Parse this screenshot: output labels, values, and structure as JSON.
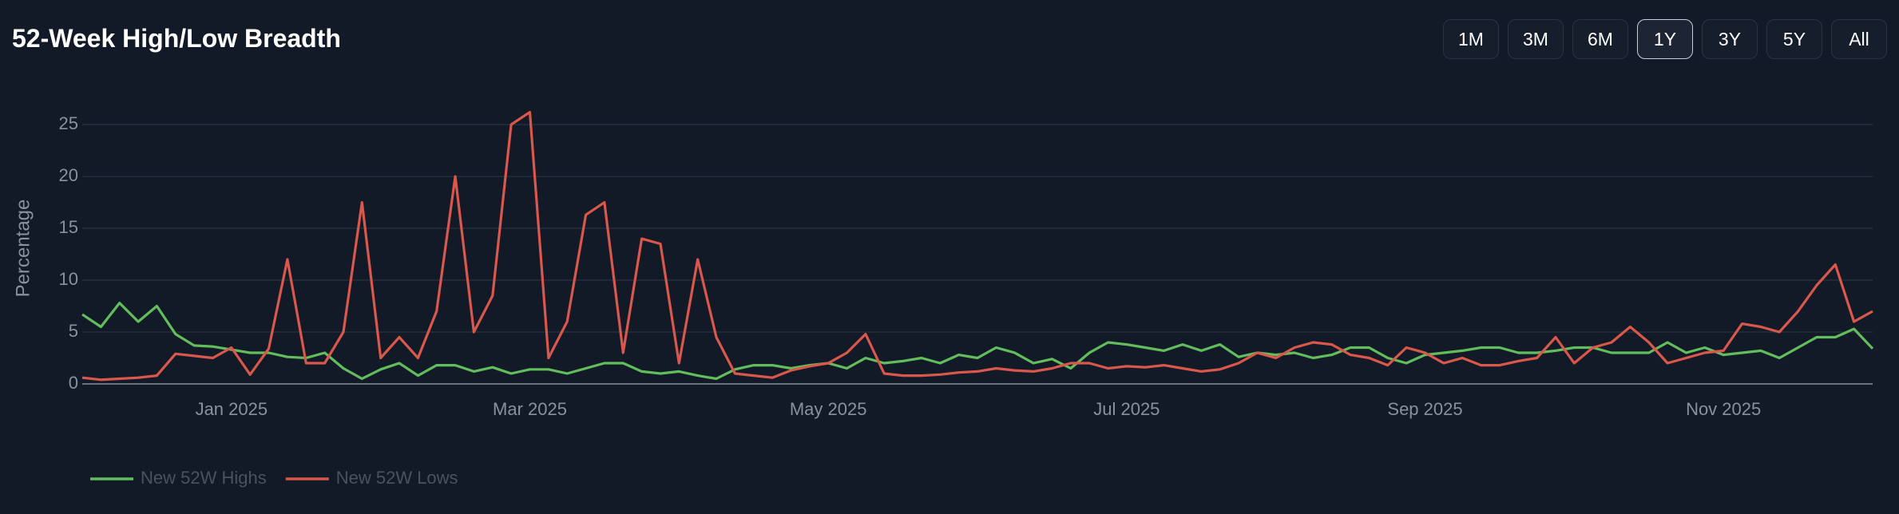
{
  "header": {
    "title": "52-Week High/Low Breadth"
  },
  "buttons": {
    "labels": [
      "1M",
      "3M",
      "6M",
      "1Y",
      "3Y",
      "5Y",
      "All"
    ],
    "active": 3
  },
  "chart_data": {
    "type": "line",
    "y_label": "Percentage",
    "legend": "bottom-left",
    "grid": true,
    "categories": [
      null,
      null,
      null,
      null,
      null,
      null,
      null,
      null,
      "Jan 2025",
      null,
      null,
      null,
      null,
      null,
      null,
      null,
      null,
      null,
      null,
      null,
      null,
      null,
      null,
      null,
      "Mar 2025",
      null,
      null,
      null,
      null,
      null,
      null,
      null,
      null,
      null,
      null,
      null,
      null,
      null,
      null,
      null,
      "May 2025",
      null,
      null,
      null,
      null,
      null,
      null,
      null,
      null,
      null,
      null,
      null,
      null,
      null,
      null,
      null,
      "Jul 2025",
      null,
      null,
      null,
      null,
      null,
      null,
      null,
      null,
      null,
      null,
      null,
      null,
      null,
      null,
      null,
      "Sep 2025",
      null,
      null,
      null,
      null,
      null,
      null,
      null,
      null,
      null,
      null,
      null,
      null,
      null,
      null,
      null,
      "Nov 2025",
      null,
      null,
      null,
      null,
      null,
      null,
      null,
      null
    ],
    "ylim": [
      0,
      27.7
    ],
    "yticks": [
      0,
      5,
      10,
      15,
      20,
      25
    ],
    "series": [
      {
        "name": "New 52W Highs",
        "color": "#62bd5c",
        "values": [
          6.7,
          5.5,
          7.8,
          6.0,
          7.5,
          4.8,
          3.7,
          3.6,
          3.3,
          3.0,
          3.0,
          2.6,
          2.5,
          3.0,
          1.5,
          0.5,
          1.4,
          2.0,
          0.8,
          1.8,
          1.8,
          1.2,
          1.6,
          1.0,
          1.4,
          1.4,
          1.0,
          1.5,
          2.0,
          2.0,
          1.2,
          1.0,
          1.2,
          0.8,
          0.5,
          1.4,
          1.8,
          1.8,
          1.5,
          1.8,
          2.0,
          1.5,
          2.5,
          2.0,
          2.2,
          2.5,
          2.0,
          2.8,
          2.5,
          3.5,
          3.0,
          2.0,
          2.4,
          1.5,
          3.0,
          4.0,
          3.8,
          3.5,
          3.2,
          3.8,
          3.2,
          3.8,
          2.6,
          3.0,
          2.8,
          3.0,
          2.5,
          2.8,
          3.5,
          3.5,
          2.5,
          2.0,
          2.8,
          3.0,
          3.2,
          3.5,
          3.5,
          3.0,
          3.0,
          3.2,
          3.5,
          3.5,
          3.0,
          3.0,
          3.0,
          4.0,
          3.0,
          3.5,
          2.8,
          3.0,
          3.2,
          2.5,
          3.5,
          4.5,
          4.5,
          5.3,
          3.4
        ]
      },
      {
        "name": "New 52W Lows",
        "color": "#d9574b",
        "values": [
          0.6,
          0.4,
          0.5,
          0.6,
          0.8,
          2.9,
          2.7,
          2.5,
          3.5,
          0.9,
          3.4,
          12.0,
          2.0,
          2.0,
          5.0,
          17.5,
          2.5,
          4.5,
          2.5,
          7.0,
          20.0,
          5.0,
          8.5,
          25.0,
          26.2,
          2.5,
          6.0,
          16.3,
          17.5,
          3.0,
          14.0,
          13.5,
          2.0,
          12.0,
          4.5,
          1.0,
          0.8,
          0.6,
          1.3,
          1.7,
          2.0,
          3.0,
          4.8,
          1.0,
          0.8,
          0.8,
          0.9,
          1.1,
          1.2,
          1.5,
          1.3,
          1.2,
          1.5,
          2.0,
          2.0,
          1.5,
          1.7,
          1.6,
          1.8,
          1.5,
          1.2,
          1.4,
          2.0,
          3.0,
          2.5,
          3.5,
          4.0,
          3.8,
          2.8,
          2.5,
          1.8,
          3.5,
          3.0,
          2.0,
          2.5,
          1.8,
          1.8,
          2.2,
          2.5,
          4.5,
          2.0,
          3.5,
          4.0,
          5.5,
          4.0,
          2.0,
          2.5,
          3.0,
          3.2,
          5.8,
          5.5,
          5.0,
          7.0,
          9.5,
          11.5,
          6.0,
          7.0
        ]
      }
    ]
  }
}
